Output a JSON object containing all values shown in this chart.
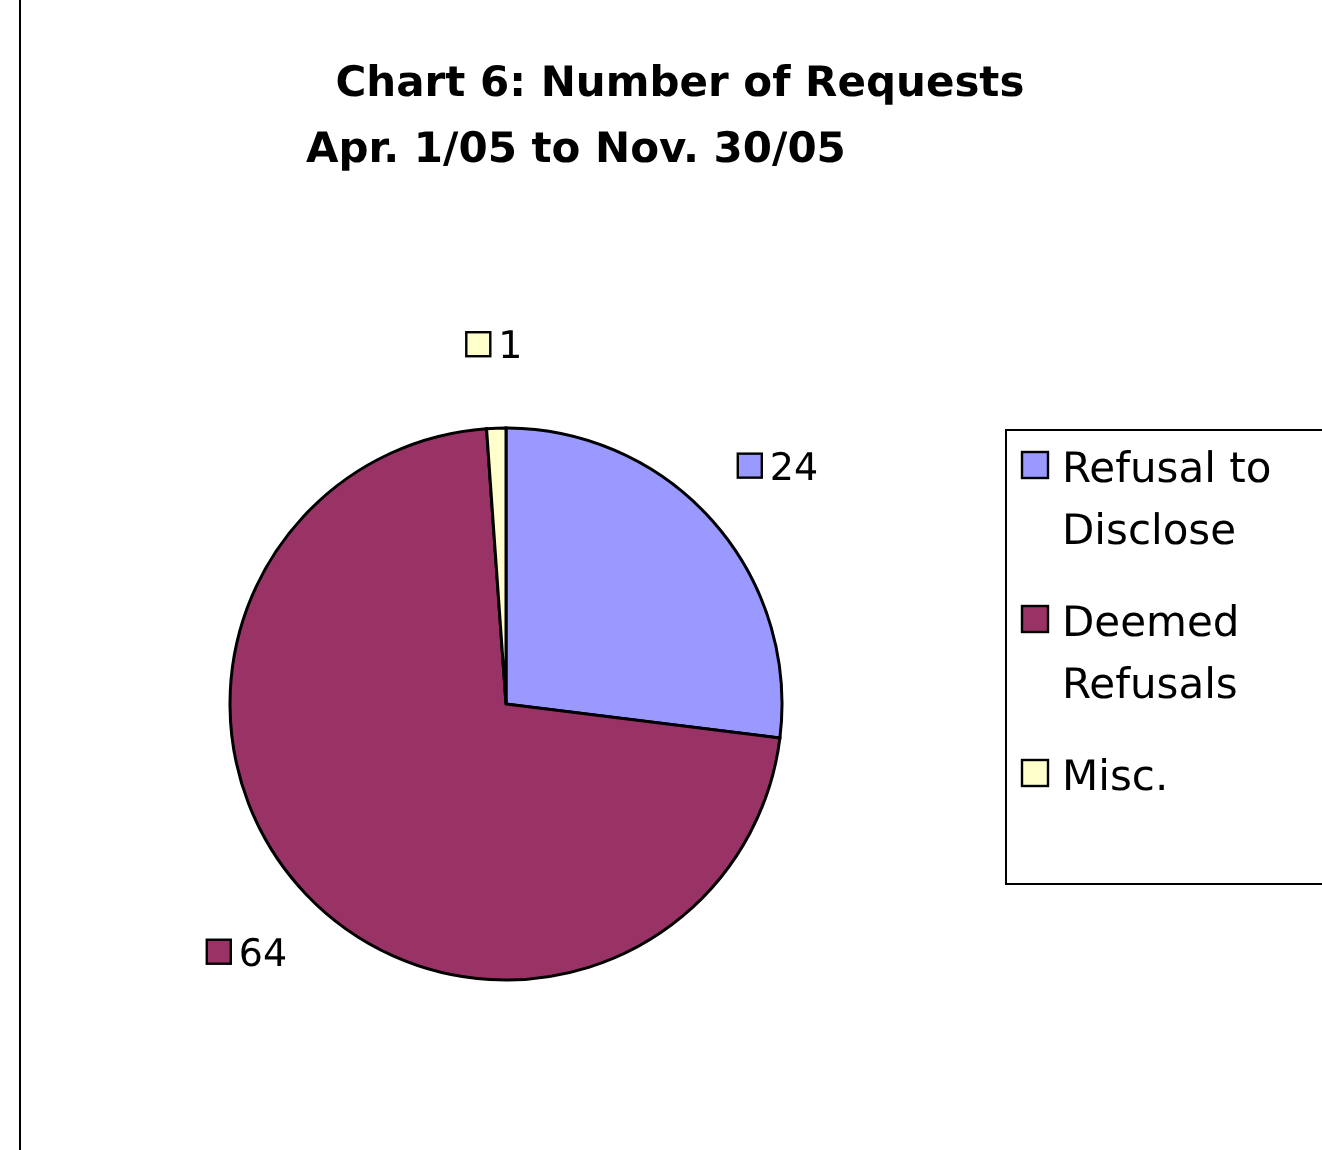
{
  "chart_data": {
    "type": "pie",
    "title": "Chart 6: Number of Requests",
    "subtitle": "Apr. 1/05 to Nov. 30/05",
    "categories": [
      "Refusal to Disclose",
      "Deemed Refusals",
      "Misc."
    ],
    "values": [
      24,
      64,
      1
    ],
    "colors": [
      "#9999ff",
      "#993366",
      "#ffffcc"
    ],
    "data_labels": true,
    "legend": "right"
  }
}
